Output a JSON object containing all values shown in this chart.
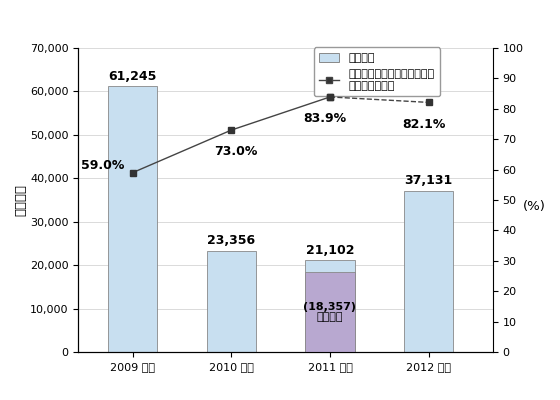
{
  "years": [
    "2009 年度",
    "2010 年度",
    "2011 年度",
    "2012 年度"
  ],
  "bar_values": [
    61245,
    23356,
    21102,
    37131
  ],
  "bar_labels": [
    "61,245",
    "23,356",
    "21,102",
    "37,131"
  ],
  "bar_color": "#c8dff0",
  "bar_color_2011_lower": "#b8a8d0",
  "bar_2011_lower_value": 18357,
  "bar_2011_lower_label_line1": "(18,357)",
  "bar_2011_lower_label_line2": "前年同期",
  "line_values": [
    59.0,
    73.0,
    83.9,
    82.1
  ],
  "line_labels": [
    "59.0%",
    "73.0%",
    "83.9%",
    "82.1%"
  ],
  "ylim_left": [
    0,
    70000
  ],
  "ylim_right": [
    0,
    100
  ],
  "yticks_left": [
    0,
    10000,
    20000,
    30000,
    40000,
    50000,
    60000,
    70000
  ],
  "yticks_right": [
    0,
    10,
    20,
    30,
    40,
    50,
    60,
    70,
    80,
    90,
    100
  ],
  "ylabel_left": "相談件数",
  "ylabel_right": "(%)",
  "legend_bar_label": "架空請求",
  "legend_line_label": "うち、デジタルコンテンツに\n関する相談割合",
  "line_color": "#444444",
  "marker_color": "#333333",
  "background_color": "#ffffff",
  "label_fontsize": 9,
  "tick_fontsize": 8,
  "bar_width": 0.5
}
